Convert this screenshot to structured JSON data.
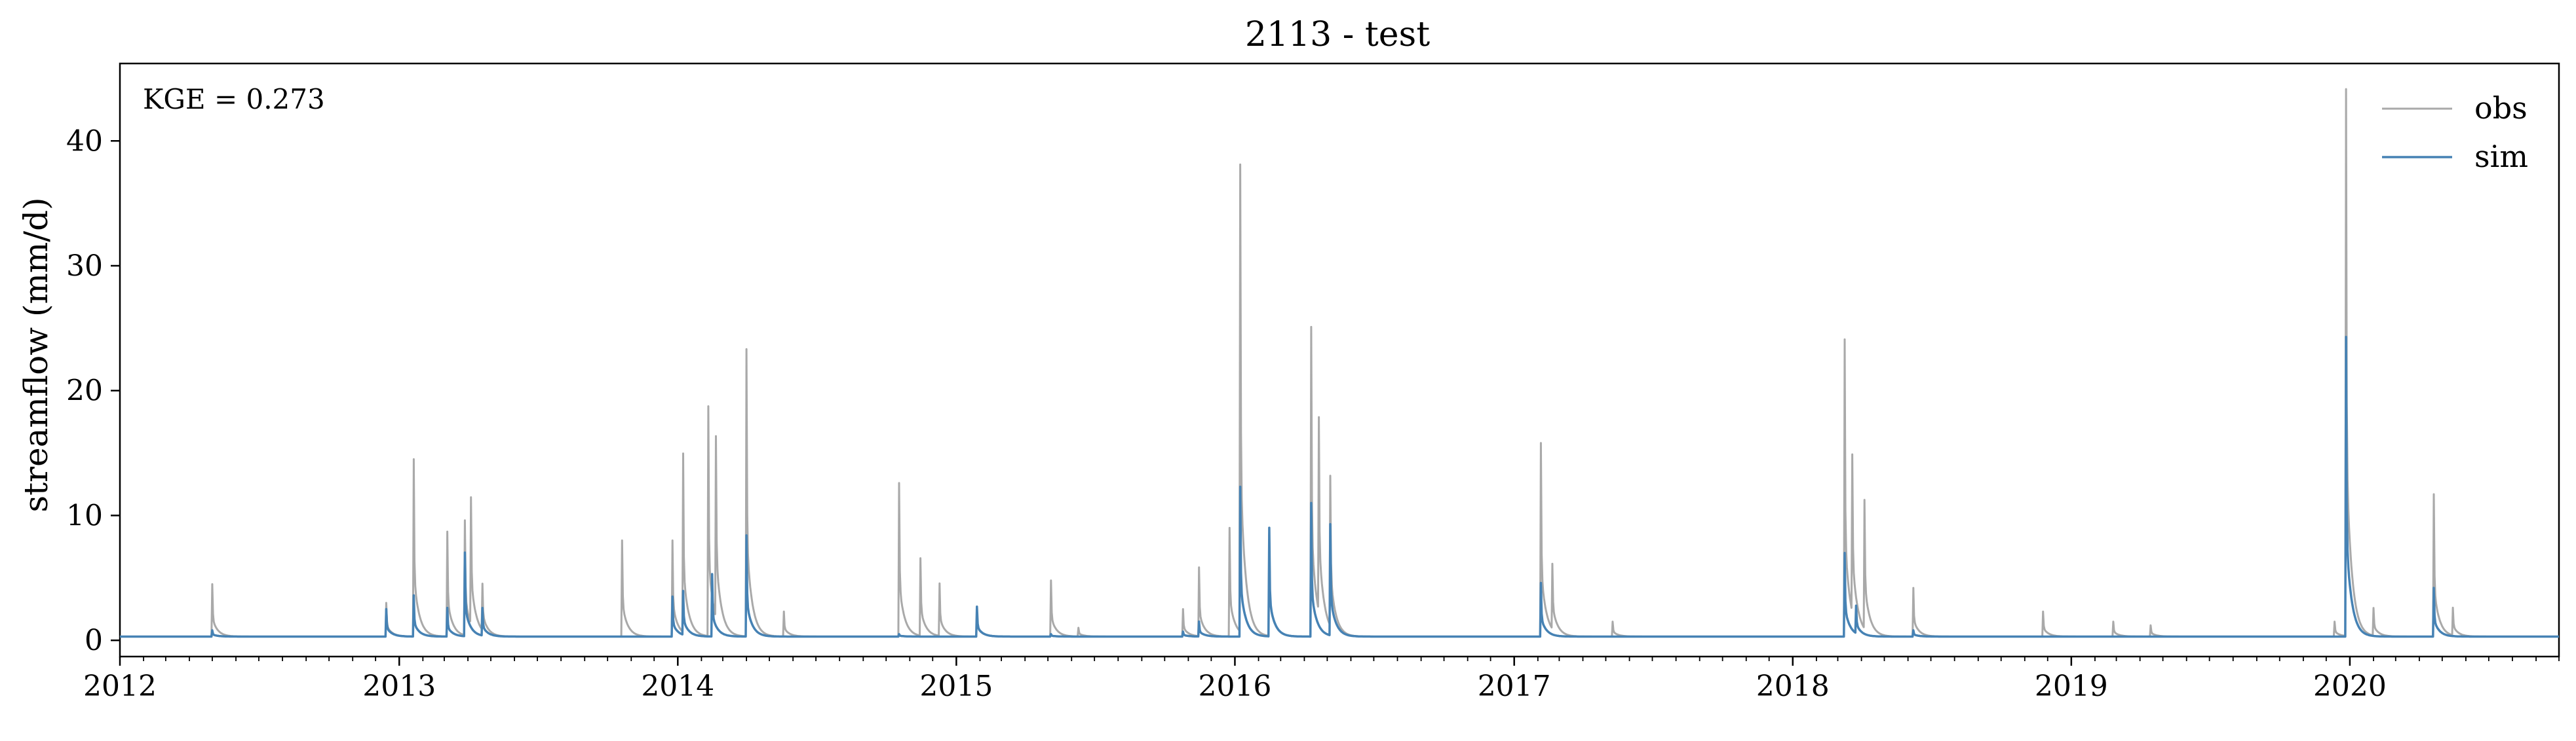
{
  "chart_data": {
    "type": "line",
    "title": "2113 - test",
    "xlabel": "",
    "ylabel": "streamflow (mm/d)",
    "xlim": [
      "2012-01-01",
      "2020-10-01"
    ],
    "ylim": [
      -1.3,
      46.2
    ],
    "x_ticks": [
      "2012",
      "2013",
      "2014",
      "2015",
      "2016",
      "2017",
      "2018",
      "2019",
      "2020"
    ],
    "y_ticks": [
      0,
      10,
      20,
      30,
      40
    ],
    "grid": false,
    "legend_position": "top-right",
    "annotation": "KGE = 0.273",
    "colors": {
      "obs": "#a9a9a9",
      "sim": "#4682b4"
    },
    "baseflow": {
      "obs": 0.3,
      "sim": 0.3
    },
    "series": [
      {
        "name": "obs",
        "events": [
          [
            "2012-05-01",
            4.5
          ],
          [
            "2012-12-15",
            3.0
          ],
          [
            "2013-01-20",
            14.5
          ],
          [
            "2013-03-05",
            8.7
          ],
          [
            "2013-03-28",
            9.5
          ],
          [
            "2013-04-05",
            10.4
          ],
          [
            "2013-04-20",
            4.0
          ],
          [
            "2013-10-20",
            8.0
          ],
          [
            "2013-12-25",
            8.0
          ],
          [
            "2014-01-08",
            14.6
          ],
          [
            "2014-02-10",
            18.7
          ],
          [
            "2014-02-20",
            14.8
          ],
          [
            "2014-04-01",
            23.3
          ],
          [
            "2014-05-20",
            2.3
          ],
          [
            "2014-10-18",
            12.6
          ],
          [
            "2014-11-15",
            6.5
          ],
          [
            "2014-12-10",
            4.5
          ],
          [
            "2015-01-28",
            2.5
          ],
          [
            "2015-05-05",
            4.8
          ],
          [
            "2015-06-10",
            1.0
          ],
          [
            "2015-10-25",
            2.5
          ],
          [
            "2015-11-15",
            5.8
          ],
          [
            "2015-12-25",
            9.0
          ],
          [
            "2016-01-08",
            37.7
          ],
          [
            "2016-02-15",
            8.5
          ],
          [
            "2016-04-10",
            25.1
          ],
          [
            "2016-04-20",
            15.8
          ],
          [
            "2016-05-05",
            12.3
          ],
          [
            "2017-02-05",
            15.8
          ],
          [
            "2017-02-20",
            5.5
          ],
          [
            "2017-05-10",
            1.5
          ],
          [
            "2018-03-10",
            24.1
          ],
          [
            "2018-03-20",
            12.9
          ],
          [
            "2018-04-05",
            10.6
          ],
          [
            "2018-06-08",
            4.2
          ],
          [
            "2018-11-25",
            2.3
          ],
          [
            "2019-02-25",
            1.5
          ],
          [
            "2019-04-15",
            1.2
          ],
          [
            "2019-12-12",
            1.5
          ],
          [
            "2019-12-27",
            44.1
          ],
          [
            "2020-02-01",
            2.5
          ],
          [
            "2020-04-20",
            11.7
          ],
          [
            "2020-05-15",
            2.5
          ]
        ]
      },
      {
        "name": "sim",
        "events": [
          [
            "2012-05-01",
            0.8
          ],
          [
            "2012-12-15",
            2.5
          ],
          [
            "2013-01-20",
            3.6
          ],
          [
            "2013-03-05",
            2.6
          ],
          [
            "2013-03-28",
            7.0
          ],
          [
            "2013-04-20",
            2.5
          ],
          [
            "2013-12-25",
            3.5
          ],
          [
            "2014-01-08",
            3.8
          ],
          [
            "2014-02-15",
            5.3
          ],
          [
            "2014-04-01",
            8.4
          ],
          [
            "2014-10-18",
            0.5
          ],
          [
            "2015-01-28",
            2.7
          ],
          [
            "2015-05-05",
            0.5
          ],
          [
            "2015-10-25",
            0.7
          ],
          [
            "2015-11-15",
            1.5
          ],
          [
            "2016-01-08",
            12.3
          ],
          [
            "2016-02-15",
            9.0
          ],
          [
            "2016-04-10",
            11.0
          ],
          [
            "2016-05-05",
            9.2
          ],
          [
            "2017-02-05",
            4.6
          ],
          [
            "2018-03-10",
            7.0
          ],
          [
            "2018-03-25",
            2.5
          ],
          [
            "2018-06-08",
            0.8
          ],
          [
            "2019-12-27",
            24.3
          ],
          [
            "2020-04-20",
            4.2
          ]
        ]
      }
    ]
  }
}
